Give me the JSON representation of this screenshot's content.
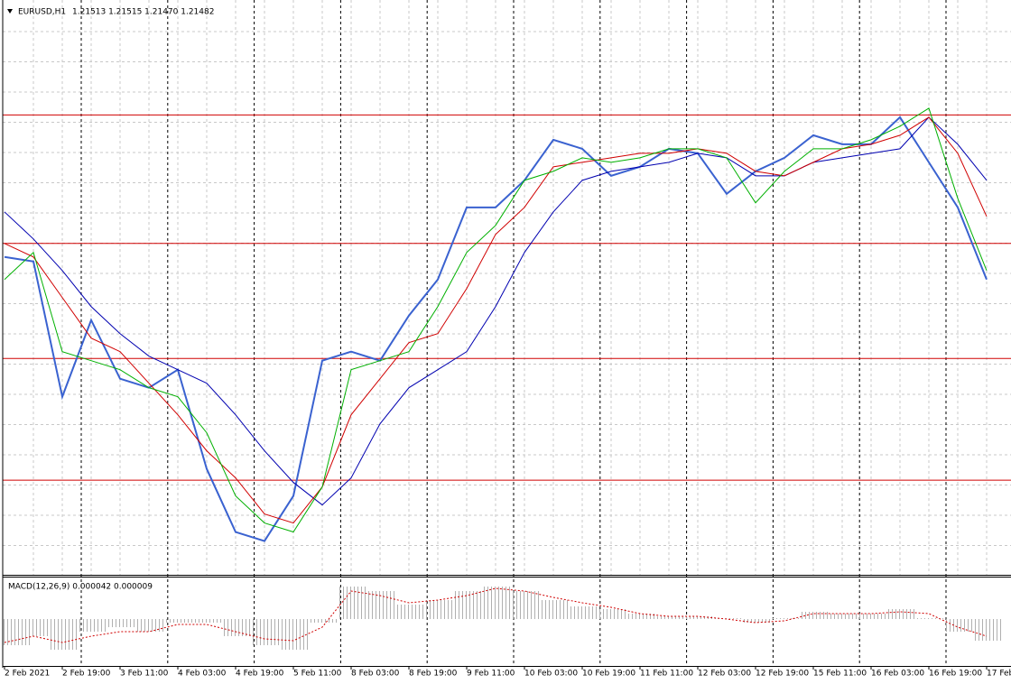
{
  "chart_data": [
    {
      "type": "line",
      "title": "EURUSD,H1",
      "subtitle": "1.21513 1.21515 1.21470 1.21482",
      "categories": [
        "2 Feb 2021",
        null,
        "2 Feb 19:00",
        null,
        "3 Feb 11:00",
        null,
        "4 Feb 03:00",
        null,
        "4 Feb 19:00",
        null,
        "5 Feb 11:00",
        null,
        "8 Feb 03:00",
        null,
        "8 Feb 19:00",
        null,
        "9 Feb 11:00",
        null,
        "10 Feb 03:00",
        null,
        "10 Feb 19:00",
        null,
        "11 Feb 11:00",
        null,
        "12 Feb 03:00",
        null,
        "12 Feb 19:00",
        null,
        "15 Feb 11:00",
        null,
        "16 Feb 03:00",
        null,
        "16 Feb 19:00",
        null,
        "17 Feb"
      ],
      "series": [
        {
          "color": "#3a62d0",
          "values": [
            1.2078,
            1.2076,
            1.2016,
            1.205,
            1.2024,
            1.202,
            1.2028,
            1.1984,
            1.1956,
            1.1952,
            1.1972,
            1.2032,
            1.2036,
            1.2032,
            1.2052,
            1.2068,
            1.21,
            1.21,
            1.2112,
            1.213,
            1.2126,
            1.2114,
            1.2118,
            1.2126,
            1.2124,
            1.2106,
            1.2116,
            1.2122,
            1.2132,
            1.2128,
            1.2128,
            1.214,
            1.212,
            1.21,
            1.2068
          ]
        },
        {
          "color": "#0000b0",
          "values": [
            1.2098,
            1.2086,
            1.2072,
            1.2056,
            1.2044,
            1.2034,
            1.2028,
            1.2022,
            1.2008,
            1.1992,
            1.1978,
            1.1968,
            1.198,
            1.2004,
            1.202,
            1.2028,
            1.2036,
            1.2056,
            1.208,
            1.2098,
            1.2112,
            1.2116,
            1.2118,
            1.212,
            1.2124,
            1.2122,
            1.2114,
            1.2114,
            1.212,
            1.2122,
            1.2124,
            1.2126,
            1.214,
            1.2128,
            1.2112
          ]
        },
        {
          "color": "#d00000",
          "values": [
            1.2084,
            1.2078,
            1.206,
            1.2042,
            1.2036,
            1.2022,
            1.2008,
            1.1992,
            1.198,
            1.1964,
            1.196,
            1.1976,
            1.2008,
            1.2024,
            1.204,
            1.2044,
            1.2064,
            1.2088,
            1.21,
            1.2118,
            1.212,
            1.2122,
            1.2124,
            1.2124,
            1.2126,
            1.2124,
            1.2116,
            1.2114,
            1.212,
            1.2126,
            1.2128,
            1.2132,
            1.214,
            1.2124,
            1.2096
          ]
        },
        {
          "color": "#00b000",
          "values": [
            1.2068,
            1.208,
            1.2036,
            1.2032,
            1.2028,
            1.202,
            1.2016,
            1.2,
            1.1972,
            1.196,
            1.1956,
            1.1976,
            1.2028,
            1.2032,
            1.2036,
            1.2056,
            1.208,
            1.2092,
            1.2112,
            1.2116,
            1.2122,
            1.212,
            1.2122,
            1.2126,
            1.2126,
            1.2122,
            1.2102,
            1.2116,
            1.2126,
            1.2126,
            1.213,
            1.2136,
            1.2144,
            1.2104,
            1.2072
          ]
        }
      ],
      "hlines": [
        1.2141,
        1.2084,
        1.2033,
        1.1979
      ],
      "hline_color": "#d00000",
      "ylim": [
        1.1937,
        1.219
      ],
      "grid": true
    },
    {
      "type": "bar",
      "title": "MACD(12,26,9) 0.000042 0.000009",
      "series": [
        {
          "color": "#b8b8b8",
          "values": [
            -0.00058,
            -0.00038,
            -0.00068,
            -0.00028,
            -0.00018,
            -0.00028,
            -8e-05,
            -8e-05,
            -0.00038,
            -0.00058,
            -0.00068,
            -8e-05,
            0.00072,
            0.00062,
            0.00032,
            0.00042,
            0.00062,
            0.00072,
            0.00062,
            0.00042,
            0.00028,
            0.00022,
            0.00012,
            6e-05,
            6e-05,
            2e-05,
            -8e-05,
            2e-05,
            0.00016,
            0.00012,
            0.00012,
            0.00022,
            2e-05,
            -0.00028,
            -0.00048
          ]
        },
        {
          "type": "line",
          "color": "#d00000",
          "values": [
            -0.00052,
            -0.00038,
            -0.00052,
            -0.00038,
            -0.00028,
            -0.00028,
            -0.00012,
            -0.00012,
            -0.00028,
            -0.00044,
            -0.00048,
            -0.00018,
            0.00062,
            0.00052,
            0.00036,
            0.00042,
            0.00052,
            0.00068,
            0.00062,
            0.00048,
            0.00036,
            0.00026,
            0.00012,
            6e-05,
            6e-05,
            0,
            -8e-05,
            -4e-05,
            0.00012,
            0.00012,
            0.00012,
            0.00016,
            0.00012,
            -0.00018,
            -0.00038
          ]
        }
      ],
      "ylim": [
        -0.00104,
        0.00092
      ]
    }
  ]
}
